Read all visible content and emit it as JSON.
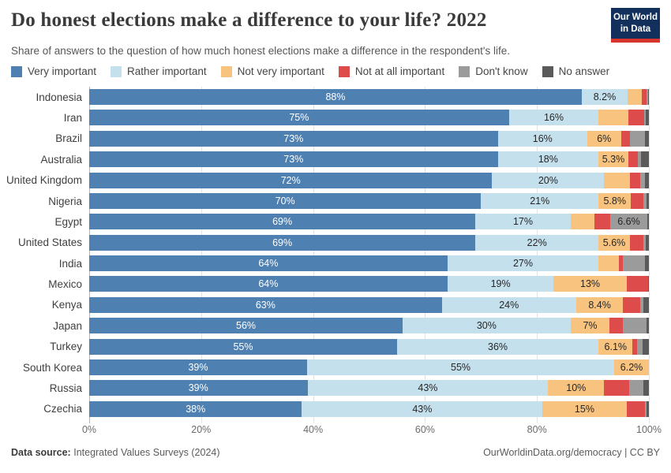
{
  "header": {
    "title": "Do honest elections make a difference to your life? 2022",
    "logo": {
      "line1": "Our World",
      "line2": "in Data"
    }
  },
  "subtitle": "Share of answers to the question of how much honest elections make a difference in the respondent's life.",
  "footer": {
    "source_label": "Data source:",
    "source_text": "Integrated Values Surveys (2024)",
    "right_text": "OurWorldinData.org/democracy | CC BY"
  },
  "colors": {
    "logo_navy": "#12305B",
    "logo_red": "#D8352C",
    "grid": "#E4E4E4",
    "axis_zero_line": "#B5B5B5"
  },
  "chart_data": {
    "type": "bar",
    "stacked": true,
    "orientation": "horizontal",
    "title": "Do honest elections make a difference to your life? 2022",
    "xlim": [
      0,
      100
    ],
    "x_ticks": [
      {
        "value": 0,
        "label": "0%"
      },
      {
        "value": 20,
        "label": "20%"
      },
      {
        "value": 40,
        "label": "40%"
      },
      {
        "value": 60,
        "label": "60%"
      },
      {
        "value": 80,
        "label": "80%"
      },
      {
        "value": 100,
        "label": "100%"
      }
    ],
    "categories": [
      "Indonesia",
      "Iran",
      "Brazil",
      "Australia",
      "United Kingdom",
      "Nigeria",
      "Egypt",
      "United States",
      "India",
      "Mexico",
      "Kenya",
      "Japan",
      "Turkey",
      "South Korea",
      "Russia",
      "Czechia"
    ],
    "series": [
      {
        "name": "Very important",
        "color": "#4E80B2",
        "label_color": "#ffffff",
        "values": [
          88,
          75,
          73,
          73,
          72,
          70,
          69,
          69,
          64,
          64,
          63,
          56,
          55,
          39,
          39,
          38
        ],
        "labels": [
          "88%",
          "75%",
          "73%",
          "73%",
          "72%",
          "70%",
          "69%",
          "69%",
          "64%",
          "64%",
          "63%",
          "56%",
          "55%",
          "39%",
          "39%",
          "38%"
        ]
      },
      {
        "name": "Rather important",
        "color": "#C5E0ED",
        "label_color": "#262626",
        "values": [
          8.2,
          16,
          16,
          18,
          20,
          21,
          17,
          22,
          27,
          19,
          24,
          30,
          36,
          55,
          43,
          43
        ],
        "labels": [
          "8.2%",
          "16%",
          "16%",
          "18%",
          "20%",
          "21%",
          "17%",
          "22%",
          "27%",
          "19%",
          "24%",
          "30%",
          "36%",
          "55%",
          "43%",
          "43%"
        ]
      },
      {
        "name": "Not very important",
        "color": "#F8C37E",
        "label_color": "#262626",
        "values": [
          2.6,
          5.4,
          6,
          5.3,
          4.6,
          5.8,
          4.3,
          5.6,
          3.7,
          13,
          8.4,
          7,
          6.1,
          6.2,
          10,
          15
        ],
        "labels": [
          "",
          "",
          "6%",
          "5.3%",
          "",
          "5.8%",
          "",
          "5.6%",
          "",
          "13%",
          "8.4%",
          "7%",
          "6.1%",
          "6.2%",
          "10%",
          "15%"
        ]
      },
      {
        "name": "Not at all important",
        "color": "#DD4B4B",
        "label_color": "#262626",
        "values": [
          0.8,
          2.7,
          1.6,
          1.8,
          1.8,
          2.2,
          2.8,
          2.4,
          0.6,
          3.8,
          3.0,
          2.4,
          0.8,
          0,
          4.5,
          3.3
        ],
        "labels": [
          "",
          "",
          "",
          "",
          "",
          "",
          "",
          "",
          "",
          "",
          "",
          "",
          "",
          "",
          "",
          ""
        ]
      },
      {
        "name": "Don't know",
        "color": "#9B9B9B",
        "label_color": "#262626",
        "values": [
          0.2,
          0.3,
          2.7,
          0.5,
          0.9,
          0.6,
          6.6,
          0.4,
          4.0,
          0,
          0.6,
          4.2,
          1.0,
          0,
          2.5,
          0.3
        ],
        "labels": [
          "",
          "",
          "",
          "",
          "",
          "",
          "6.6%",
          "",
          "",
          "",
          "",
          "",
          "",
          "",
          "",
          ""
        ]
      },
      {
        "name": "No answer",
        "color": "#5A5A5A",
        "label_color": "#262626",
        "values": [
          0.2,
          0.6,
          0.7,
          1.4,
          0.7,
          0.4,
          0.3,
          0.6,
          0.7,
          0.2,
          1.0,
          0.4,
          1.1,
          0,
          1.0,
          0.4
        ],
        "labels": [
          "",
          "",
          "",
          "",
          "",
          "",
          "",
          "",
          "",
          "",
          "",
          "",
          "",
          "",
          "",
          ""
        ]
      }
    ]
  }
}
